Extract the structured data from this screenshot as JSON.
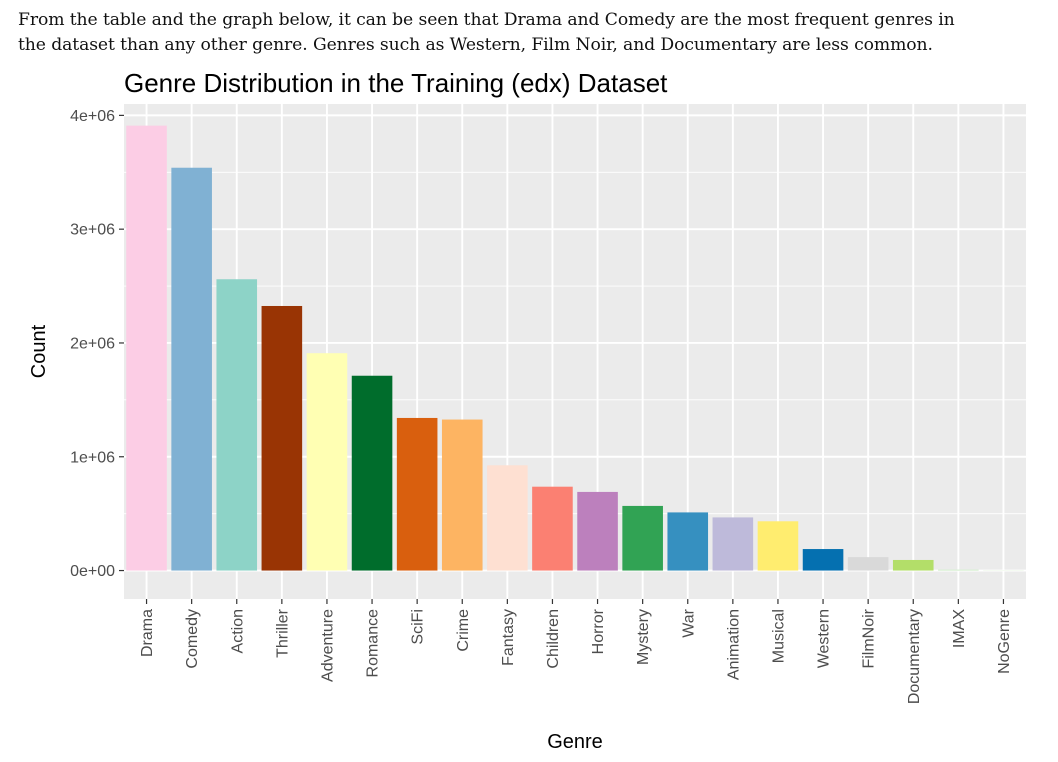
{
  "intro": {
    "line1": "From the table and the graph below, it can be seen that Drama and Comedy are the most frequent genres in",
    "line2": "the dataset than any other genre. Genres such as Western, Film Noir, and Documentary are less common."
  },
  "chart_data": {
    "type": "bar",
    "title": "Genre Distribution in the Training (edx) Dataset",
    "xlabel": "Genre",
    "ylabel": "Count",
    "ylim": [
      -250000,
      4100000
    ],
    "yticks": [
      0,
      1000000,
      2000000,
      3000000,
      4000000
    ],
    "ytick_labels": [
      "0e+00",
      "1e+06",
      "2e+06",
      "3e+06",
      "4e+06"
    ],
    "grid": true,
    "legend": "none",
    "background": "#ebebeb",
    "categories": [
      "Drama",
      "Comedy",
      "Action",
      "Thriller",
      "Adventure",
      "Romance",
      "SciFi",
      "Crime",
      "Fantasy",
      "Children",
      "Horror",
      "Mystery",
      "War",
      "Animation",
      "Musical",
      "Western",
      "FilmNoir",
      "Documentary",
      "IMAX",
      "NoGenre"
    ],
    "values": [
      3910000,
      3540000,
      2560000,
      2325000,
      1910000,
      1712000,
      1341000,
      1327000,
      925000,
      737000,
      691000,
      568000,
      511000,
      467000,
      433000,
      189000,
      118000,
      93000,
      8000,
      7
    ],
    "colors": [
      "#fccde5",
      "#80b1d3",
      "#8dd3c7",
      "#993404",
      "#ffffb3",
      "#006d2c",
      "#d95f0e",
      "#fdb462",
      "#fee0d2",
      "#fb8072",
      "#bc80bd",
      "#31a354",
      "#3690c0",
      "#bebada",
      "#ffed6f",
      "#0570b0",
      "#d9d9d9",
      "#b3de69",
      "#ccebc5",
      "#e5f5e0"
    ]
  }
}
